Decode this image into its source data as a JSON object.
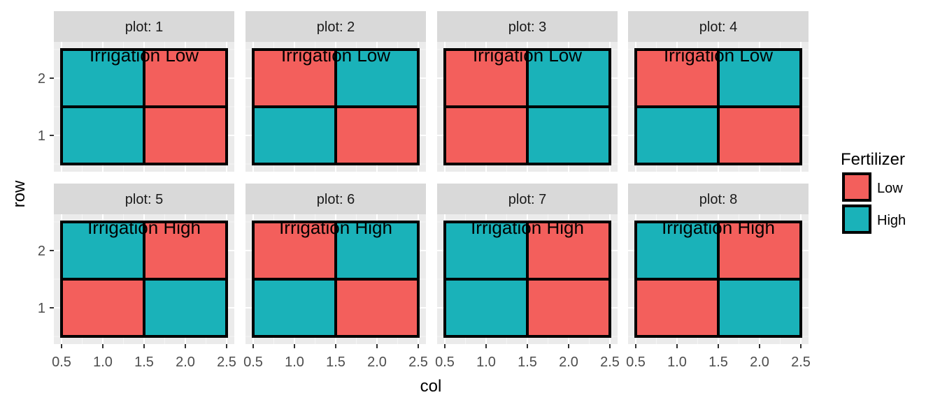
{
  "chart_data": {
    "type": "heatmap",
    "facet_label_prefix": "plot: ",
    "xlabel": "col",
    "ylabel": "row",
    "xlim": [
      0.5,
      2.5
    ],
    "ylim": [
      0.5,
      2.5
    ],
    "x_ticks": [
      "0.5",
      "1.0",
      "1.5",
      "2.0",
      "2.5"
    ],
    "y_ticks": [
      "1",
      "2"
    ],
    "grid": true,
    "legend": {
      "title": "Fertilizer",
      "position": "right",
      "items": [
        {
          "label": "Low",
          "color": "#F8766D"
        },
        {
          "label": "High",
          "color": "#00BFC4"
        }
      ]
    },
    "colors": {
      "Low": "#F35F5C",
      "High": "#1AB2B9"
    },
    "panels": [
      {
        "plot": "1",
        "annotation": "Irrigation Low",
        "cells": [
          {
            "row": 2,
            "col": 1,
            "fert": "High"
          },
          {
            "row": 2,
            "col": 2,
            "fert": "Low"
          },
          {
            "row": 1,
            "col": 1,
            "fert": "High"
          },
          {
            "row": 1,
            "col": 2,
            "fert": "Low"
          }
        ]
      },
      {
        "plot": "2",
        "annotation": "Irrigation Low",
        "cells": [
          {
            "row": 2,
            "col": 1,
            "fert": "Low"
          },
          {
            "row": 2,
            "col": 2,
            "fert": "High"
          },
          {
            "row": 1,
            "col": 1,
            "fert": "High"
          },
          {
            "row": 1,
            "col": 2,
            "fert": "Low"
          }
        ]
      },
      {
        "plot": "3",
        "annotation": "Irrigation Low",
        "cells": [
          {
            "row": 2,
            "col": 1,
            "fert": "Low"
          },
          {
            "row": 2,
            "col": 2,
            "fert": "High"
          },
          {
            "row": 1,
            "col": 1,
            "fert": "Low"
          },
          {
            "row": 1,
            "col": 2,
            "fert": "High"
          }
        ]
      },
      {
        "plot": "4",
        "annotation": "Irrigation Low",
        "cells": [
          {
            "row": 2,
            "col": 1,
            "fert": "Low"
          },
          {
            "row": 2,
            "col": 2,
            "fert": "High"
          },
          {
            "row": 1,
            "col": 1,
            "fert": "High"
          },
          {
            "row": 1,
            "col": 2,
            "fert": "Low"
          }
        ]
      },
      {
        "plot": "5",
        "annotation": "Irrigation High",
        "cells": [
          {
            "row": 2,
            "col": 1,
            "fert": "High"
          },
          {
            "row": 2,
            "col": 2,
            "fert": "Low"
          },
          {
            "row": 1,
            "col": 1,
            "fert": "Low"
          },
          {
            "row": 1,
            "col": 2,
            "fert": "High"
          }
        ]
      },
      {
        "plot": "6",
        "annotation": "Irrigation High",
        "cells": [
          {
            "row": 2,
            "col": 1,
            "fert": "Low"
          },
          {
            "row": 2,
            "col": 2,
            "fert": "High"
          },
          {
            "row": 1,
            "col": 1,
            "fert": "High"
          },
          {
            "row": 1,
            "col": 2,
            "fert": "Low"
          }
        ]
      },
      {
        "plot": "7",
        "annotation": "Irrigation High",
        "cells": [
          {
            "row": 2,
            "col": 1,
            "fert": "High"
          },
          {
            "row": 2,
            "col": 2,
            "fert": "Low"
          },
          {
            "row": 1,
            "col": 1,
            "fert": "High"
          },
          {
            "row": 1,
            "col": 2,
            "fert": "Low"
          }
        ]
      },
      {
        "plot": "8",
        "annotation": "Irrigation High",
        "cells": [
          {
            "row": 2,
            "col": 1,
            "fert": "High"
          },
          {
            "row": 2,
            "col": 2,
            "fert": "Low"
          },
          {
            "row": 1,
            "col": 1,
            "fert": "Low"
          },
          {
            "row": 1,
            "col": 2,
            "fert": "High"
          }
        ]
      }
    ]
  }
}
